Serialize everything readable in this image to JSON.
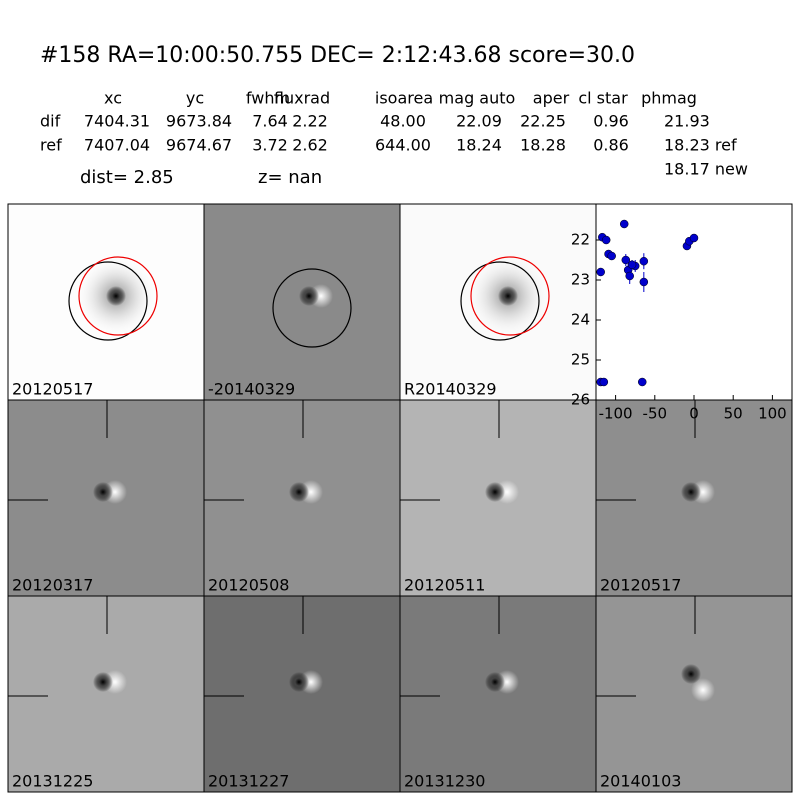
{
  "header": {
    "title": "#158   RA=10:00:50.755 DEC= 2:12:43.68       score=30.0",
    "columns": [
      "xc",
      "yc",
      "fwhm",
      "fluxrad",
      "isoarea",
      "mag auto",
      "aper",
      "cl star",
      "phmag"
    ],
    "rows": [
      {
        "label": "dif",
        "values": [
          "7404.31",
          "9673.84",
          "7.64",
          "2.22",
          "48.00",
          "22.09",
          "22.25",
          "0.96",
          "21.93"
        ]
      },
      {
        "label": "ref",
        "values": [
          "7407.04",
          "9674.67",
          "3.72",
          "2.62",
          "644.00",
          "18.24",
          "18.28",
          "0.86",
          "18.23 ref"
        ]
      }
    ],
    "extra": "18.17 new",
    "dist": "dist=  2.85",
    "z": "z=   nan"
  },
  "panels": [
    "20120517",
    "-20140329",
    "R20140329",
    "20120317",
    "20120508",
    "20120511",
    "20120517",
    "20131225",
    "20131227",
    "20131230",
    "20140103"
  ],
  "chart_data": {
    "type": "scatter",
    "x": [
      -89,
      -117,
      -112,
      -109,
      -105,
      -119,
      -119,
      -115,
      -87,
      -84,
      -82,
      -75,
      -79,
      -64,
      -64,
      -66,
      -9,
      -6,
      0
    ],
    "values": [
      21.6,
      21.93,
      22.0,
      22.35,
      22.4,
      22.8,
      25.55,
      25.55,
      22.5,
      22.75,
      22.9,
      22.65,
      22.62,
      22.53,
      23.05,
      25.55,
      22.15,
      22.03,
      21.95
    ],
    "errors": [
      0.05,
      0.05,
      0.05,
      0.08,
      0.08,
      0.1,
      0.05,
      0.05,
      0.15,
      0.15,
      0.2,
      0.15,
      0.12,
      0.2,
      0.25,
      0.05,
      0.1,
      0.08,
      0.05
    ],
    "color": "#0000cc",
    "xlim": [
      -125,
      125
    ],
    "ylim": [
      26,
      21.1
    ],
    "xticks": [
      -100,
      -50,
      0,
      50,
      100
    ],
    "yticks": [
      22,
      23,
      24,
      25,
      26
    ]
  }
}
